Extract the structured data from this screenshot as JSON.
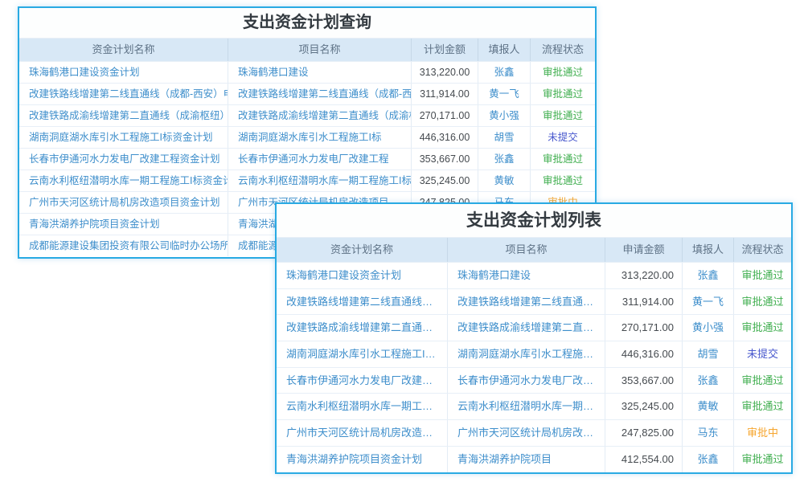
{
  "status_colors": {
    "审批通过": "#3fae4e",
    "未提交": "#4757cd",
    "审批中": "#f6a52d"
  },
  "link_color": "#3d8ecb",
  "windows": [
    {
      "title": "支出资金计划查询",
      "columns": [
        "资金计划名称",
        "项目名称",
        "计划金额",
        "填报人",
        "流程状态"
      ],
      "amount_align": "center",
      "truncate": "clip",
      "rows": [
        {
          "plan_name": "珠海鹤港口建设资金计划",
          "project_name": "珠海鹤港口建设",
          "amount": "313,220.00",
          "reporter": "张鑫",
          "status": "审批通过"
        },
        {
          "plan_name": "改建铁路线增建第二线直通线（成都-西安）电力",
          "project_name": "改建铁路线增建第二线直通线（成都-西安）",
          "amount": "311,914.00",
          "reporter": "黄一飞",
          "status": "审批通过"
        },
        {
          "plan_name": "改建铁路成渝线增建第二直通线（成渝枢纽）电力",
          "project_name": "改建铁路成渝线增建第二直通线（成渝枢纽）",
          "amount": "270,171.00",
          "reporter": "黄小强",
          "status": "审批通过"
        },
        {
          "plan_name": "湖南洞庭湖水库引水工程施工I标资金计划",
          "project_name": "湖南洞庭湖水库引水工程施工I标",
          "amount": "446,316.00",
          "reporter": "胡雪",
          "status": "未提交"
        },
        {
          "plan_name": "长春市伊通河水力发电厂改建工程资金计划",
          "project_name": "长春市伊通河水力发电厂改建工程",
          "amount": "353,667.00",
          "reporter": "张鑫",
          "status": "审批通过"
        },
        {
          "plan_name": "云南水利枢纽潜明水库一期工程施工I标资金计划",
          "project_name": "云南水利枢纽潜明水库一期工程施工I标",
          "amount": "325,245.00",
          "reporter": "黄敏",
          "status": "审批通过"
        },
        {
          "plan_name": "广州市天河区统计局机房改造项目资金计划",
          "project_name": "广州市天河区统计局机房改造项目",
          "amount": "247,825.00",
          "reporter": "马东",
          "status": "审批中"
        },
        {
          "plan_name": "青海洪湖养护院项目资金计划",
          "project_name": "青海洪湖养护院项目",
          "amount": "",
          "reporter": "",
          "status": ""
        },
        {
          "plan_name": "成都能源建设集团投资有限公司临时办公场所装修",
          "project_name": "成都能源建设集团投资有限公司",
          "amount": "",
          "reporter": "",
          "status": ""
        }
      ]
    },
    {
      "title": "支出资金计划列表",
      "columns": [
        "资金计划名称",
        "项目名称",
        "申请金额",
        "填报人",
        "流程状态"
      ],
      "amount_align": "right",
      "truncate": "ellipsis",
      "rows": [
        {
          "plan_name": "珠海鹤港口建设资金计划",
          "project_name": "珠海鹤港口建设",
          "amount": "313,220.00",
          "reporter": "张鑫",
          "status": "审批通过"
        },
        {
          "plan_name": "改建铁路线增建第二线直通线（成都-西安）电力",
          "project_name": "改建铁路线增建第二线直通线（成都-西安）",
          "amount": "311,914.00",
          "reporter": "黄一飞",
          "status": "审批通过"
        },
        {
          "plan_name": "改建铁路成渝线增建第二直通线（成渝枢纽）电力",
          "project_name": "改建铁路成渝线增建第二直通线（成渝枢纽）",
          "amount": "270,171.00",
          "reporter": "黄小强",
          "status": "审批通过"
        },
        {
          "plan_name": "湖南洞庭湖水库引水工程施工I标资金计划",
          "project_name": "湖南洞庭湖水库引水工程施工I标",
          "amount": "446,316.00",
          "reporter": "胡雪",
          "status": "未提交"
        },
        {
          "plan_name": "长春市伊通河水力发电厂改建工程资金计划",
          "project_name": "长春市伊通河水力发电厂改建工程",
          "amount": "353,667.00",
          "reporter": "张鑫",
          "status": "审批通过"
        },
        {
          "plan_name": "云南水利枢纽潜明水库一期工程施工I标资金计划",
          "project_name": "云南水利枢纽潜明水库一期工程施工I标",
          "amount": "325,245.00",
          "reporter": "黄敏",
          "status": "审批通过"
        },
        {
          "plan_name": "广州市天河区统计局机房改造项目资金计划",
          "project_name": "广州市天河区统计局机房改造项目",
          "amount": "247,825.00",
          "reporter": "马东",
          "status": "审批中"
        },
        {
          "plan_name": "青海洪湖养护院项目资金计划",
          "project_name": "青海洪湖养护院项目",
          "amount": "412,554.00",
          "reporter": "张鑫",
          "status": "审批通过"
        }
      ]
    }
  ]
}
